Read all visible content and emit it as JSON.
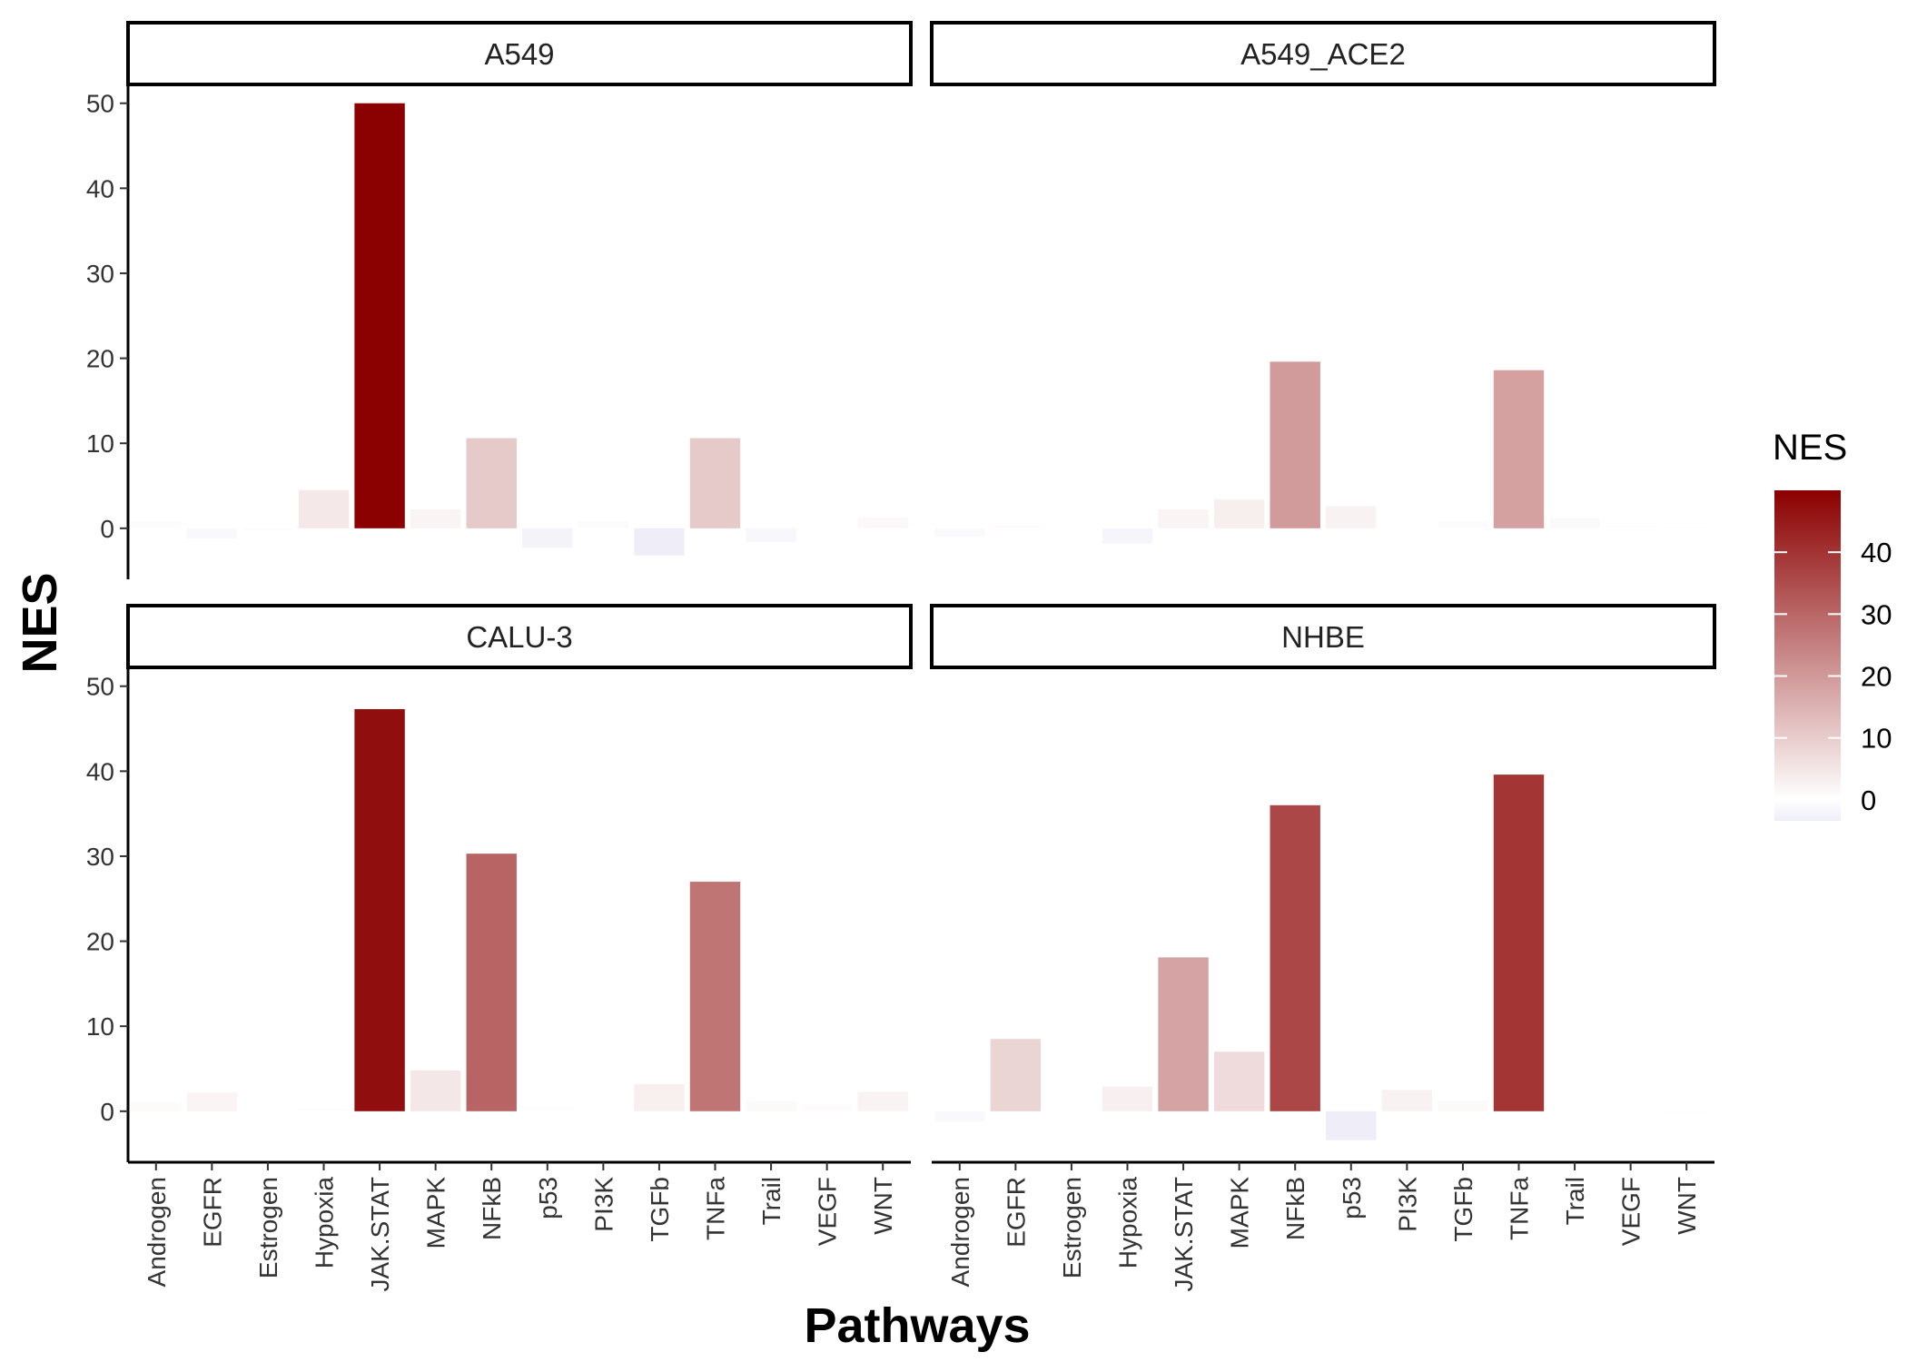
{
  "chart_data": {
    "type": "bar",
    "xlabel": "Pathways",
    "ylabel": "NES",
    "ylim": [
      -6,
      52
    ],
    "yticks": [
      0,
      10,
      20,
      30,
      40,
      50
    ],
    "categories": [
      "Androgen",
      "EGFR",
      "Estrogen",
      "Hypoxia",
      "JAK.STAT",
      "MAPK",
      "NFkB",
      "p53",
      "PI3K",
      "TGFb",
      "TNFa",
      "Trail",
      "VEGF",
      "WNT"
    ],
    "panels": [
      {
        "name": "A549",
        "values": [
          0.8,
          -1.2,
          -0.3,
          4.5,
          50.0,
          2.2,
          10.6,
          -2.3,
          0.8,
          -3.2,
          10.6,
          -1.6,
          0.0,
          1.3
        ]
      },
      {
        "name": "A549_ACE2",
        "values": [
          -1.0,
          0.5,
          0.0,
          -1.8,
          2.2,
          3.4,
          19.6,
          2.6,
          0.0,
          0.8,
          18.6,
          1.2,
          0.3,
          0.2
        ]
      },
      {
        "name": "CALU-3",
        "values": [
          1.0,
          2.2,
          0.0,
          0.3,
          47.3,
          4.8,
          30.3,
          0.5,
          0.0,
          3.2,
          27.0,
          1.2,
          0.8,
          2.3
        ]
      },
      {
        "name": "NHBE",
        "values": [
          -1.2,
          8.5,
          0.0,
          2.9,
          18.1,
          7.0,
          36.0,
          -3.4,
          2.5,
          1.2,
          39.6,
          0.0,
          0.0,
          -0.2
        ]
      }
    ],
    "legend": {
      "title": "NES",
      "position": "right",
      "ticks": [
        0,
        10,
        20,
        30,
        40
      ],
      "range": [
        -3.4,
        50
      ],
      "low_color": "#eeedf8",
      "mid_color": "#ffffff",
      "high_color": "#8b0000"
    },
    "grid": false
  }
}
